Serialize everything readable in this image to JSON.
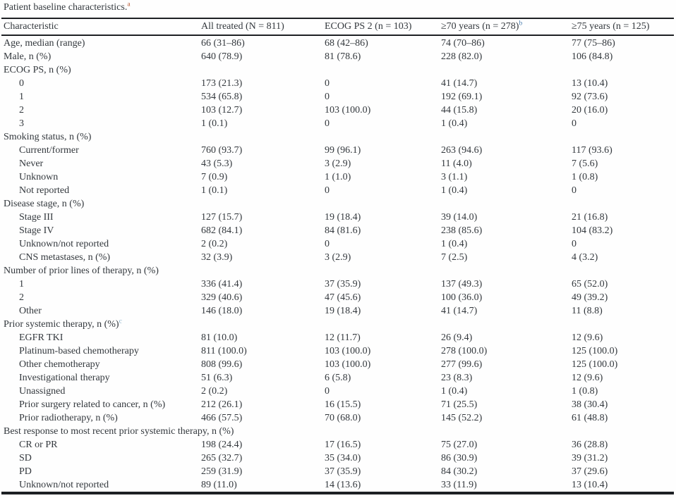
{
  "caption": {
    "text": "Patient baseline characteristics.",
    "marker": "a"
  },
  "colors": {
    "text": "#33383d",
    "rule": "#1d2023",
    "marker_a": "#b5552e",
    "marker_b": "#4a7dae",
    "marker_c": "#85aec8"
  },
  "table": {
    "columns": [
      {
        "label": "Characteristic",
        "marker": ""
      },
      {
        "label": "All treated (N = 811)",
        "marker": ""
      },
      {
        "label": "ECOG PS 2 (n = 103)",
        "marker": ""
      },
      {
        "label": "≥70 years (n = 278)",
        "marker": "b"
      },
      {
        "label": "≥75 years (n = 125)",
        "marker": ""
      }
    ],
    "rows": [
      {
        "label": "Age, median (range)",
        "marker": "",
        "indent": 0,
        "values": [
          "66 (31–86)",
          "68 (42–86)",
          "74 (70–86)",
          "77 (75–86)"
        ]
      },
      {
        "label": "Male, n (%)",
        "marker": "",
        "indent": 0,
        "values": [
          "640 (78.9)",
          "81 (78.6)",
          "228 (82.0)",
          "106 (84.8)"
        ]
      },
      {
        "label": "ECOG PS, n (%)",
        "marker": "",
        "indent": 0,
        "values": [
          "",
          "",
          "",
          ""
        ]
      },
      {
        "label": "0",
        "marker": "",
        "indent": 1,
        "values": [
          "173 (21.3)",
          "0",
          "41 (14.7)",
          "13 (10.4)"
        ]
      },
      {
        "label": "1",
        "marker": "",
        "indent": 1,
        "values": [
          "534 (65.8)",
          "0",
          "192 (69.1)",
          "92 (73.6)"
        ]
      },
      {
        "label": "2",
        "marker": "",
        "indent": 1,
        "values": [
          "103 (12.7)",
          "103 (100.0)",
          "44 (15.8)",
          "20 (16.0)"
        ]
      },
      {
        "label": "3",
        "marker": "",
        "indent": 1,
        "values": [
          "1 (0.1)",
          "0",
          "1 (0.4)",
          "0"
        ]
      },
      {
        "label": "Smoking status, n (%)",
        "marker": "",
        "indent": 0,
        "values": [
          "",
          "",
          "",
          ""
        ]
      },
      {
        "label": "Current/former",
        "marker": "",
        "indent": 1,
        "values": [
          "760 (93.7)",
          "99 (96.1)",
          "263 (94.6)",
          "117 (93.6)"
        ]
      },
      {
        "label": "Never",
        "marker": "",
        "indent": 1,
        "values": [
          "43 (5.3)",
          "3 (2.9)",
          "11 (4.0)",
          "7 (5.6)"
        ]
      },
      {
        "label": "Unknown",
        "marker": "",
        "indent": 1,
        "values": [
          "7 (0.9)",
          "1 (1.0)",
          "3 (1.1)",
          "1 (0.8)"
        ]
      },
      {
        "label": "Not reported",
        "marker": "",
        "indent": 1,
        "values": [
          "1 (0.1)",
          "0",
          "1 (0.4)",
          "0"
        ]
      },
      {
        "label": "Disease stage, n (%)",
        "marker": "",
        "indent": 0,
        "values": [
          "",
          "",
          "",
          ""
        ]
      },
      {
        "label": "Stage III",
        "marker": "",
        "indent": 1,
        "values": [
          "127 (15.7)",
          "19 (18.4)",
          "39 (14.0)",
          "21 (16.8)"
        ]
      },
      {
        "label": "Stage IV",
        "marker": "",
        "indent": 1,
        "values": [
          "682 (84.1)",
          "84 (81.6)",
          "238 (85.6)",
          "104 (83.2)"
        ]
      },
      {
        "label": "Unknown/not reported",
        "marker": "",
        "indent": 1,
        "values": [
          "2 (0.2)",
          "0",
          "1 (0.4)",
          "0"
        ]
      },
      {
        "label": "CNS metastases, n (%)",
        "marker": "",
        "indent": 1,
        "values": [
          "32 (3.9)",
          "3 (2.9)",
          "7 (2.5)",
          "4 (3.2)"
        ]
      },
      {
        "label": "Number of prior lines of therapy, n (%)",
        "marker": "",
        "indent": 0,
        "values": [
          "",
          "",
          "",
          ""
        ]
      },
      {
        "label": "1",
        "marker": "",
        "indent": 1,
        "values": [
          "336 (41.4)",
          "37 (35.9)",
          "137 (49.3)",
          "65 (52.0)"
        ]
      },
      {
        "label": "2",
        "marker": "",
        "indent": 1,
        "values": [
          "329 (40.6)",
          "47 (45.6)",
          "100 (36.0)",
          "49 (39.2)"
        ]
      },
      {
        "label": "Other",
        "marker": "",
        "indent": 1,
        "values": [
          "146 (18.0)",
          "19 (18.4)",
          "41 (14.7)",
          "11 (8.8)"
        ]
      },
      {
        "label": "Prior systemic therapy, n (%)",
        "marker": "c",
        "indent": 0,
        "values": [
          "",
          "",
          "",
          ""
        ]
      },
      {
        "label": "EGFR TKI",
        "marker": "",
        "indent": 1,
        "values": [
          "81 (10.0)",
          "12 (11.7)",
          "26 (9.4)",
          "12 (9.6)"
        ]
      },
      {
        "label": "Platinum-based chemotherapy",
        "marker": "",
        "indent": 1,
        "values": [
          "811 (100.0)",
          "103 (100.0)",
          "278 (100.0)",
          "125 (100.0)"
        ]
      },
      {
        "label": "Other chemotherapy",
        "marker": "",
        "indent": 1,
        "values": [
          "808 (99.6)",
          "103 (100.0)",
          "277 (99.6)",
          "125 (100.0)"
        ]
      },
      {
        "label": "Investigational therapy",
        "marker": "",
        "indent": 1,
        "values": [
          "51 (6.3)",
          "6 (5.8)",
          "23 (8.3)",
          "12 (9.6)"
        ]
      },
      {
        "label": "Unassigned",
        "marker": "",
        "indent": 1,
        "values": [
          "2 (0.2)",
          "0",
          "1 (0.4)",
          "1 (0.8)"
        ]
      },
      {
        "label": "Prior surgery related to cancer, n (%)",
        "marker": "",
        "indent": 1,
        "values": [
          "212 (26.1)",
          "16 (15.5)",
          "71 (25.5)",
          "38 (30.4)"
        ]
      },
      {
        "label": "Prior radiotherapy, n (%)",
        "marker": "",
        "indent": 1,
        "values": [
          "466 (57.5)",
          "70 (68.0)",
          "145 (52.2)",
          "61 (48.8)"
        ]
      },
      {
        "label": "Best response to most recent prior systemic therapy, n (%)",
        "marker": "",
        "indent": 0,
        "values": [
          "",
          "",
          "",
          ""
        ]
      },
      {
        "label": "CR or PR",
        "marker": "",
        "indent": 1,
        "values": [
          "198 (24.4)",
          "17 (16.5)",
          "75 (27.0)",
          "36 (28.8)"
        ]
      },
      {
        "label": "SD",
        "marker": "",
        "indent": 1,
        "values": [
          "265 (32.7)",
          "35 (34.0)",
          "86 (30.9)",
          "39 (31.2)"
        ]
      },
      {
        "label": "PD",
        "marker": "",
        "indent": 1,
        "values": [
          "259 (31.9)",
          "37 (35.9)",
          "84 (30.2)",
          "37 (29.6)"
        ]
      },
      {
        "label": "Unknown/not reported",
        "marker": "",
        "indent": 1,
        "values": [
          "89 (11.0)",
          "14 (13.6)",
          "33 (11.9)",
          "13 (10.4)"
        ]
      }
    ]
  }
}
